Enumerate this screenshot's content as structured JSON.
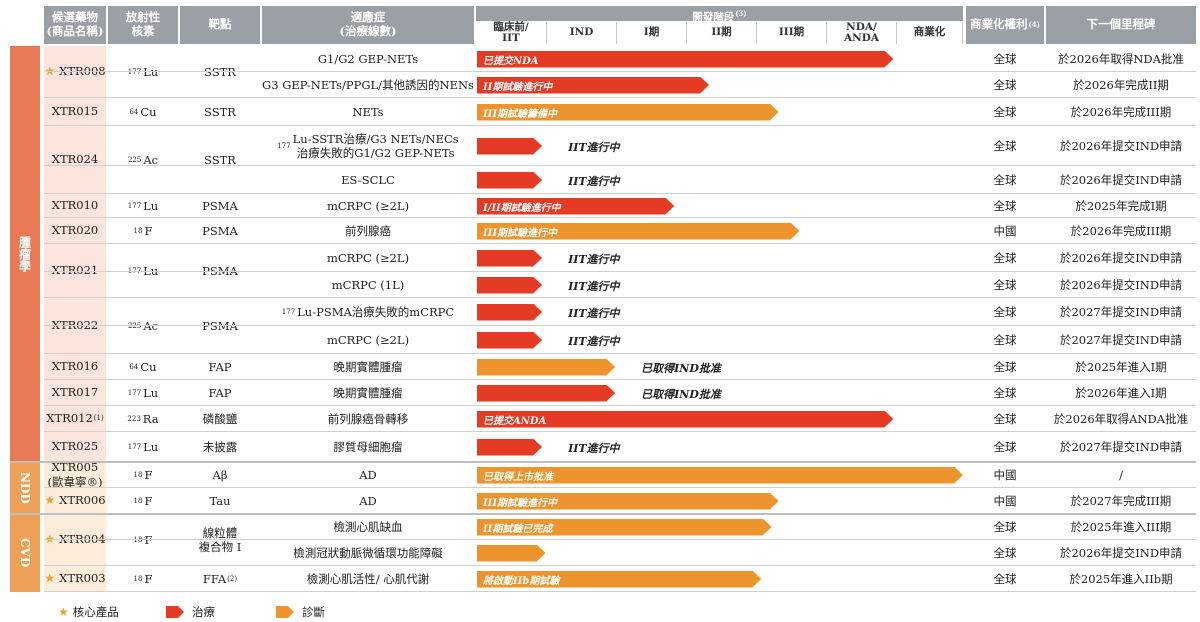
{
  "headers": {
    "candidate": "候選藥物\n(商品名稱)",
    "isotope": "放射性\n核素",
    "target": "靶點",
    "indication": "適應症\n(治療線數)",
    "stage": "開發階段",
    "stage_sup": "(3)",
    "rights": "商業化權利",
    "rights_sup": "(4)",
    "milestone": "下一個里程碑"
  },
  "stages": [
    "臨床前/\nIIT",
    "IND",
    "I期",
    "II期",
    "III期",
    "NDA/\nANDA",
    "商業化"
  ],
  "categories": [
    {
      "label": "腫瘤學",
      "color": "#e97a56"
    },
    {
      "label": "NDD",
      "color": "#eda056"
    },
    {
      "label": "CVD",
      "color": "#eda056"
    }
  ],
  "groups": [
    {
      "name": "XTR008",
      "star": true,
      "iso_mass": "177",
      "iso_el": "Lu",
      "target": "SSTR",
      "rows": [
        0,
        1
      ]
    },
    {
      "name": "XTR015",
      "star": false,
      "iso_mass": "64",
      "iso_el": "Cu",
      "target": "SSTR",
      "rows": [
        2
      ]
    },
    {
      "name": "XTR024",
      "star": false,
      "iso_mass": "225",
      "iso_el": "Ac",
      "target": "SSTR",
      "rows": [
        3,
        4
      ]
    },
    {
      "name": "XTR010",
      "star": false,
      "iso_mass": "177",
      "iso_el": "Lu",
      "target": "PSMA",
      "rows": [
        5
      ]
    },
    {
      "name": "XTR020",
      "star": false,
      "iso_mass": "18",
      "iso_el": "F",
      "target": "PSMA",
      "rows": [
        6
      ]
    },
    {
      "name": "XTR021",
      "star": false,
      "iso_mass": "177",
      "iso_el": "Lu",
      "target": "PSMA",
      "rows": [
        7,
        8
      ]
    },
    {
      "name": "XTR022",
      "star": false,
      "iso_mass": "225",
      "iso_el": "Ac",
      "target": "PSMA",
      "rows": [
        9,
        10
      ]
    },
    {
      "name": "XTR016",
      "star": false,
      "iso_mass": "64",
      "iso_el": "Cu",
      "target": "FAP",
      "rows": [
        11
      ]
    },
    {
      "name": "XTR017",
      "star": false,
      "iso_mass": "177",
      "iso_el": "Lu",
      "target": "FAP",
      "rows": [
        12
      ]
    },
    {
      "name": "XTR012",
      "name_sup": "(1)",
      "star": false,
      "iso_mass": "223",
      "iso_el": "Ra",
      "target": "磷酸鹽",
      "rows": [
        13
      ]
    },
    {
      "name": "XTR025",
      "star": false,
      "iso_mass": "177",
      "iso_el": "Lu",
      "target": "未披露",
      "rows": [
        14
      ]
    },
    {
      "name": "XTR005\n(歐韋寧®)",
      "star": false,
      "iso_mass": "18",
      "iso_el": "F",
      "target": "Aβ",
      "rows": [
        15
      ]
    },
    {
      "name": "XTR006",
      "star": true,
      "iso_mass": "18",
      "iso_el": "F",
      "target": "Tau",
      "rows": [
        16
      ]
    },
    {
      "name": "XTR004",
      "star": true,
      "iso_mass": "18",
      "iso_el": "F",
      "target": "線粒體\n複合物 I",
      "rows": [
        17,
        18
      ]
    },
    {
      "name": "XTR003",
      "star": true,
      "iso_mass": "18",
      "iso_el": "F",
      "target": "FFA",
      "target_sup": "(2)",
      "rows": [
        19
      ]
    }
  ],
  "rows": [
    {
      "indication": "G1/G2 GEP-NETs",
      "type": "therapy",
      "stage_end": 6.0,
      "label": "已提交NDA",
      "label_out": false,
      "rights": "全球",
      "milestone": "於2026年取得NDA批准"
    },
    {
      "indication": "G3 GEP-NETs/PPGL/其他誘因的NENs",
      "type": "therapy",
      "stage_end": 3.35,
      "label": "II期試驗進行中",
      "label_out": false,
      "rights": "全球",
      "milestone": "於2026年完成II期"
    },
    {
      "indication": "NETs",
      "type": "diagnostic",
      "stage_end": 4.35,
      "label": "III期試驗籌備中",
      "label_out": false,
      "rights": "全球",
      "milestone": "於2026年完成III期"
    },
    {
      "indication": "177Lu-SSTR治療/G3 NETs/NECs\n治療失敗的G1/G2 GEP-NETs",
      "ind_iso": "177",
      "type": "therapy",
      "stage_end": 0.95,
      "label": "IIT進行中",
      "label_out": true,
      "rights": "全球",
      "milestone": "於2026年提交IND申請"
    },
    {
      "indication": "ES-SCLC",
      "type": "therapy",
      "stage_end": 0.95,
      "label": "IIT進行中",
      "label_out": true,
      "rights": "全球",
      "milestone": "於2026年提交IND申請"
    },
    {
      "indication": "mCRPC (≥2L)",
      "type": "therapy",
      "stage_end": 2.85,
      "label": "I/II期試驗進行中",
      "label_out": false,
      "rights": "全球",
      "milestone": "於2025年完成I期"
    },
    {
      "indication": "前列腺癌",
      "type": "diagnostic",
      "stage_end": 4.65,
      "label": "III期試驗進行中",
      "label_out": false,
      "rights": "中國",
      "milestone": "於2026年完成III期"
    },
    {
      "indication": "mCRPC (≥2L)",
      "type": "therapy",
      "stage_end": 0.95,
      "label": "IIT進行中",
      "label_out": true,
      "rights": "全球",
      "milestone": "於2026年提交IND申請"
    },
    {
      "indication": "mCRPC (1L)",
      "type": "therapy",
      "stage_end": 0.95,
      "label": "IIT進行中",
      "label_out": true,
      "rights": "全球",
      "milestone": "於2026年提交IND申請"
    },
    {
      "indication": "177Lu-PSMA治療失敗的mCRPC",
      "ind_iso": "177",
      "type": "therapy",
      "stage_end": 0.95,
      "label": "IIT進行中",
      "label_out": true,
      "rights": "全球",
      "milestone": "於2027年提交IND申請"
    },
    {
      "indication": "mCRPC (≥2L)",
      "type": "therapy",
      "stage_end": 0.95,
      "label": "IIT進行中",
      "label_out": true,
      "rights": "全球",
      "milestone": "於2027年提交IND申請"
    },
    {
      "indication": "晚期實體腫瘤",
      "type": "diagnostic",
      "stage_end": 2.0,
      "label": "已取得IND批准",
      "label_out": true,
      "rights": "全球",
      "milestone": "於2025年進入I期"
    },
    {
      "indication": "晚期實體腫瘤",
      "type": "therapy",
      "stage_end": 2.0,
      "label": "已取得IND批准",
      "label_out": true,
      "rights": "全球",
      "milestone": "於2026年進入I期"
    },
    {
      "indication": "前列腺癌骨轉移",
      "type": "therapy",
      "stage_end": 6.0,
      "label": "已提交ANDA",
      "label_out": false,
      "rights": "全球",
      "milestone": "於2026年取得ANDA批准"
    },
    {
      "indication": "膠質母細胞瘤",
      "type": "therapy",
      "stage_end": 0.95,
      "label": "IIT進行中",
      "label_out": true,
      "rights": "全球",
      "milestone": "於2027年提交IND申請"
    },
    {
      "indication": "AD",
      "type": "diagnostic",
      "stage_end": 7.0,
      "label": "已取得上市批准",
      "label_out": false,
      "rights": "中國",
      "milestone": "/"
    },
    {
      "indication": "AD",
      "type": "diagnostic",
      "stage_end": 4.35,
      "label": "III期試驗進行中",
      "label_out": false,
      "rights": "中國",
      "milestone": "於2027年完成III期"
    },
    {
      "indication": "檢測心肌缺血",
      "type": "diagnostic",
      "stage_end": 4.25,
      "label": "II期試驗已完成",
      "label_out": false,
      "rights": "全球",
      "milestone": "於2025年進入III期"
    },
    {
      "indication": "檢測冠狀動脈微循環功能障礙",
      "type": "diagnostic",
      "stage_end": 1.0,
      "label": "",
      "label_out": false,
      "rights": "全球",
      "milestone": "於2026年提交IND申請"
    },
    {
      "indication": "檢測心肌活性/ 心肌代謝",
      "type": "diagnostic",
      "stage_end": 4.1,
      "label": "將啟動IIb期試驗",
      "label_out": false,
      "rights": "全球",
      "milestone": "於2025年進入IIb期"
    }
  ],
  "legend": {
    "core": "核心產品",
    "therapy": "治療",
    "diagnostic": "診斷"
  },
  "colors": {
    "therapy": "#e53a24",
    "diagnostic": "#ee942e",
    "star": "#f2a22b",
    "header": "#9aa0a6"
  }
}
